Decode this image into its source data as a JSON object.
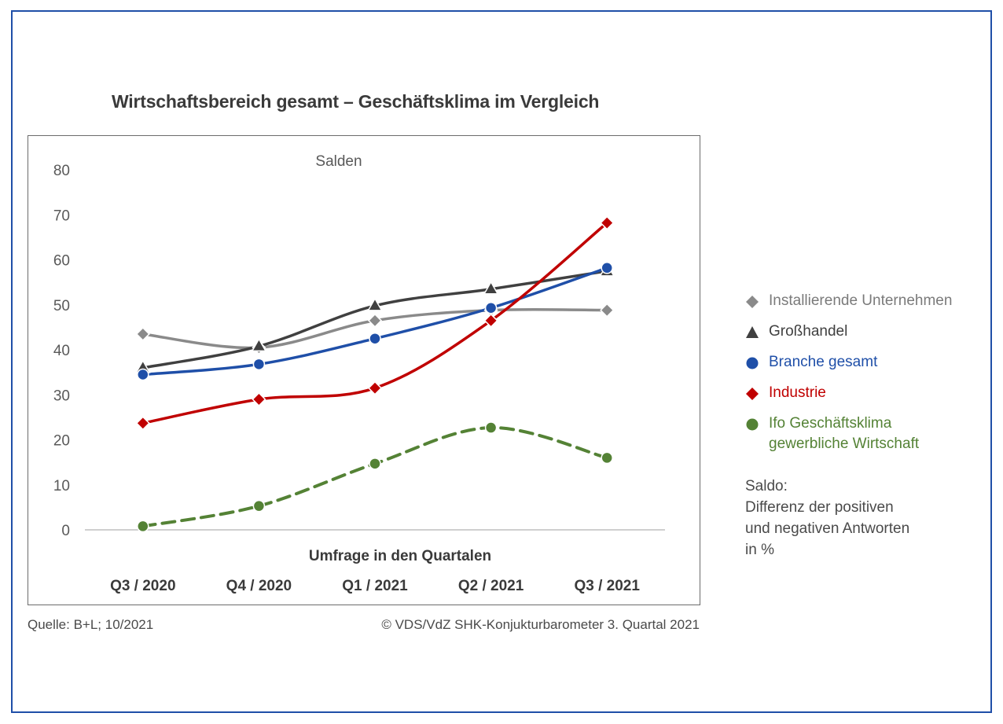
{
  "title": "Wirtschaftsbereich gesamt – Geschäftsklima im Vergleich",
  "chart_data": {
    "type": "line",
    "title": "Wirtschaftsbereich gesamt – Geschäftsklima im Vergleich",
    "subtitle": "Salden",
    "xlabel": "Umfrage in den Quartalen",
    "ylabel": "",
    "categories": [
      "Q3 / 2020",
      "Q4 / 2020",
      "Q1 / 2021",
      "Q2 / 2021",
      "Q3 / 2021"
    ],
    "ylim": [
      0,
      80
    ],
    "yticks": [
      0,
      10,
      20,
      30,
      40,
      50,
      60,
      70,
      80
    ],
    "grid": false,
    "legend_position": "right",
    "series": [
      {
        "name": "Installierende Unternehmen",
        "values": [
          43.5,
          40.5,
          46.5,
          48.8,
          48.8
        ],
        "color": "#8a8a8a",
        "marker": "diamond",
        "dashed": false
      },
      {
        "name": "Großhandel",
        "values": [
          36,
          40.8,
          49.8,
          53.5,
          57.5
        ],
        "color": "#404040",
        "marker": "triangle",
        "dashed": false
      },
      {
        "name": "Branche gesamt",
        "values": [
          34.5,
          36.8,
          42.5,
          49.3,
          58.2
        ],
        "color": "#1f4fa8",
        "marker": "circle",
        "dashed": false
      },
      {
        "name": "Industrie",
        "values": [
          23.7,
          29,
          31.5,
          46.5,
          68.2
        ],
        "color": "#c00000",
        "marker": "diamond",
        "dashed": false
      },
      {
        "name": "Ifo Geschäftsklima gewerbliche Wirtschaft",
        "values": [
          0.8,
          5.3,
          14.7,
          22.7,
          16
        ],
        "color": "#548235",
        "marker": "circle",
        "dashed": true
      }
    ]
  },
  "legend": {
    "items": [
      {
        "line1": "Installierende Unternehmen",
        "line2": "",
        "color": "#8a8a8a",
        "marker": "diamond"
      },
      {
        "line1": "Großhandel",
        "line2": "",
        "color": "#404040",
        "marker": "triangle"
      },
      {
        "line1": "Branche gesamt",
        "line2": "",
        "color": "#1f4fa8",
        "marker": "circle"
      },
      {
        "line1": "Industrie",
        "line2": "",
        "color": "#c00000",
        "marker": "diamond"
      },
      {
        "line1": "Ifo Geschäftsklima",
        "line2": "gewerbliche Wirtschaft",
        "color": "#548235",
        "marker": "circle"
      }
    ]
  },
  "note": {
    "line1": "Saldo:",
    "line2": "Differenz der positiven",
    "line3": "und negativen Antworten",
    "line4": "in %"
  },
  "footer": {
    "source": "Quelle: B+L; 10/2021",
    "copyright": "© VDS/VdZ SHK-Konjukturbarometer 3. Quartal 2021"
  }
}
